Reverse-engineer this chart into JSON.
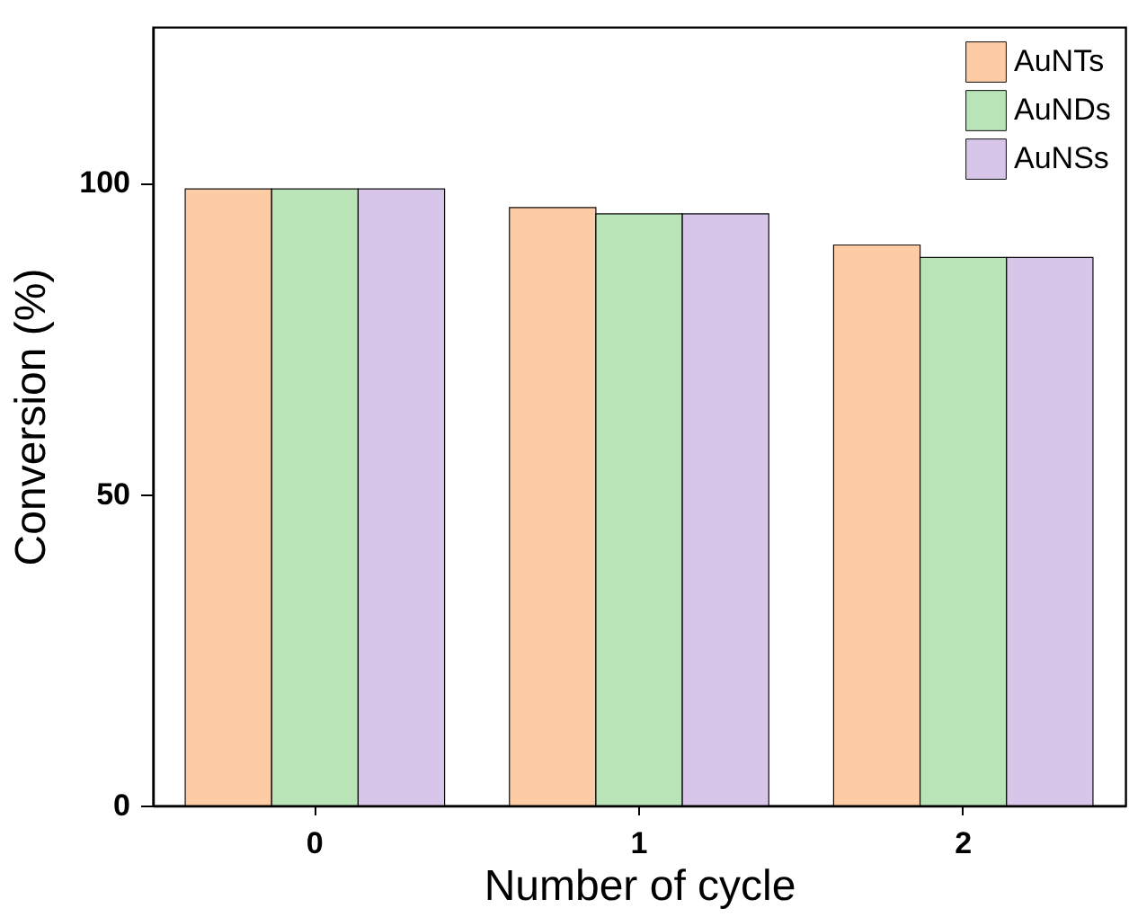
{
  "chart_data": {
    "type": "bar",
    "xlabel": "Number of cycle",
    "ylabel": "Conversion (%)",
    "categories": [
      "0",
      "1",
      "2"
    ],
    "series": [
      {
        "name": "AuNTs",
        "color": "#fdc9a0",
        "values": [
          99,
          96,
          90
        ]
      },
      {
        "name": "AuNDs",
        "color": "#b5e3b5",
        "values": [
          99,
          95,
          88
        ]
      },
      {
        "name": "AuNSs",
        "color": "#d5c4e8",
        "values": [
          99,
          95,
          88
        ]
      }
    ],
    "ylim": [
      0,
      125
    ],
    "yticks": [
      0,
      50,
      100
    ],
    "grid": false,
    "legend": "top right"
  }
}
